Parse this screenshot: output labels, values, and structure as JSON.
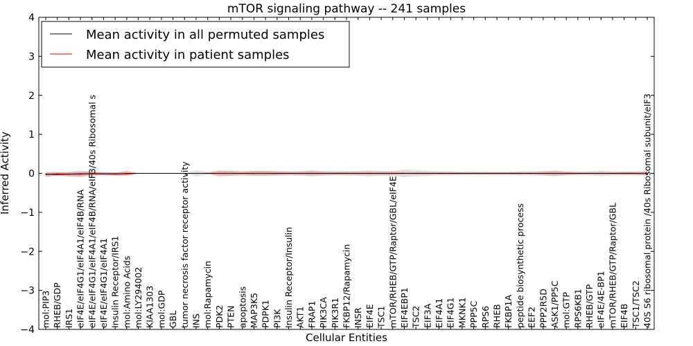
{
  "chart_data": {
    "type": "line",
    "title": "mTOR signaling pathway -- 241 samples",
    "xlabel": "Cellular Entities",
    "ylabel": "Inferred Activity",
    "ylim": [
      -4,
      4
    ],
    "yticks": [
      "4",
      "3",
      "2",
      "1",
      "0",
      "−1",
      "−2",
      "−3",
      "−4"
    ],
    "ytick_values": [
      4,
      3,
      2,
      1,
      0,
      -1,
      -2,
      -3,
      -4
    ],
    "grid": false,
    "legend_position": "top-left",
    "categories": [
      "mol:PIP3",
      "RHEB/GDP",
      "IRS1",
      "eIF4E/eIF4G1/eIF4A1/eIF4B/RNA",
      "eIF4E/eIF4G1/eIF4A1/eIF4B/RNA/eIF3/40s Ribosomal s",
      "eIF4E/eIF4G1/eIF4A1",
      "Insulin Receptor/IRS1",
      "mol:Amino Acids",
      "mol:LY294002",
      "KIAA1303",
      "mol:GDP",
      "GBL",
      "tumor necrosis factor receptor activity",
      "INS",
      "mol:Rapamycin",
      "PDK2",
      "PTEN",
      "apoptosis",
      "MAP3K5",
      "PDPK1",
      "PI3K",
      "Insulin Receptor/Insulin",
      "AKT1",
      "FRAP1",
      "PIK3CA",
      "PIK3R1",
      "FKBP12/Rapamycin",
      "INSR",
      "EIF4E",
      "TSC1",
      "mTOR/RHEB/GTP/Raptor/GBL/eIF4E",
      "EIF4EBP1",
      "TSC2",
      "EIF3A",
      "EIF4A1",
      "EIF4G1",
      "MKNK1",
      "PPP5C",
      "RPS6",
      "RHEB",
      "FKBP1A",
      "peptide biosynthetic process",
      "EEF2",
      "PPP2R5D",
      "ASK1/PP5C",
      "mol:GTP",
      "RPS6KB1",
      "RHEB/GTP",
      "eIF4E/4E-BP1",
      "mTOR/RHEB/GTP/Raptor/GBL",
      "EIF4B",
      "TSC1/TSC2",
      "40S S6 ribosomal protein /40s Ribosomal subunit/eIF3"
    ],
    "series": [
      {
        "name": "Mean activity in all permuted samples",
        "color": "#000000",
        "band_color": "#c8c8c8",
        "values": [
          -0.02,
          -0.03,
          -0.02,
          -0.01,
          -0.01,
          -0.01,
          -0.01,
          -0.01,
          0,
          0,
          0,
          0,
          0,
          0,
          0,
          0,
          0,
          0,
          0,
          0,
          0,
          0,
          0,
          0,
          0,
          0,
          0,
          0,
          0,
          0,
          0,
          0,
          0,
          0,
          0,
          0,
          0,
          0,
          0,
          0,
          0,
          0,
          0,
          0,
          0,
          0,
          0,
          0,
          0,
          0,
          0,
          0,
          0
        ],
        "spread": [
          0.02,
          0.05,
          0.06,
          0.08,
          0.06,
          0.03,
          0.04,
          0.03,
          0,
          0,
          0,
          0,
          0,
          0.08,
          0.03,
          0.03,
          0.04,
          0.03,
          0.05,
          0.05,
          0.05,
          0.05,
          0.06,
          0.08,
          0.06,
          0.05,
          0.05,
          0.06,
          0.08,
          0.06,
          0.06,
          0.1,
          0.08,
          0.06,
          0.05,
          0.05,
          0.04,
          0.04,
          0.04,
          0.04,
          0.04,
          0.05,
          0.05,
          0.06,
          0.08,
          0.05,
          0.04,
          0.05,
          0.07,
          0.05,
          0.04,
          0.04,
          0.04
        ]
      },
      {
        "name": "Mean activity in patient samples",
        "color": "#ff0000",
        "band_color": "#f08080",
        "values": [
          -0.03,
          -0.01,
          -0.02,
          -0.02,
          0,
          -0.01,
          -0.02,
          0,
          0,
          0,
          0,
          0,
          0,
          0,
          0,
          0,
          0,
          0,
          0,
          0,
          0,
          0,
          0,
          0,
          0,
          0,
          0,
          0,
          0,
          0,
          0,
          0,
          0,
          0,
          0,
          0,
          0,
          0,
          0,
          0,
          0,
          0,
          0,
          0,
          0,
          0,
          0,
          0,
          0,
          0,
          0,
          0,
          0
        ],
        "spread": [
          0.06,
          0.04,
          0.05,
          0.06,
          0.04,
          0.04,
          0.04,
          0.06,
          0,
          0,
          0,
          0,
          0,
          0,
          0.02,
          0.07,
          0.06,
          0.05,
          0.06,
          0.06,
          0.05,
          0.04,
          0.04,
          0.05,
          0.04,
          0.04,
          0.04,
          0.04,
          0.04,
          0.04,
          0.04,
          0.03,
          0.03,
          0.03,
          0.03,
          0.03,
          0.03,
          0.03,
          0.03,
          0.03,
          0.03,
          0.03,
          0.03,
          0.04,
          0.05,
          0.04,
          0.03,
          0.03,
          0.03,
          0.03,
          0.04,
          0.04,
          0.05
        ]
      }
    ]
  }
}
